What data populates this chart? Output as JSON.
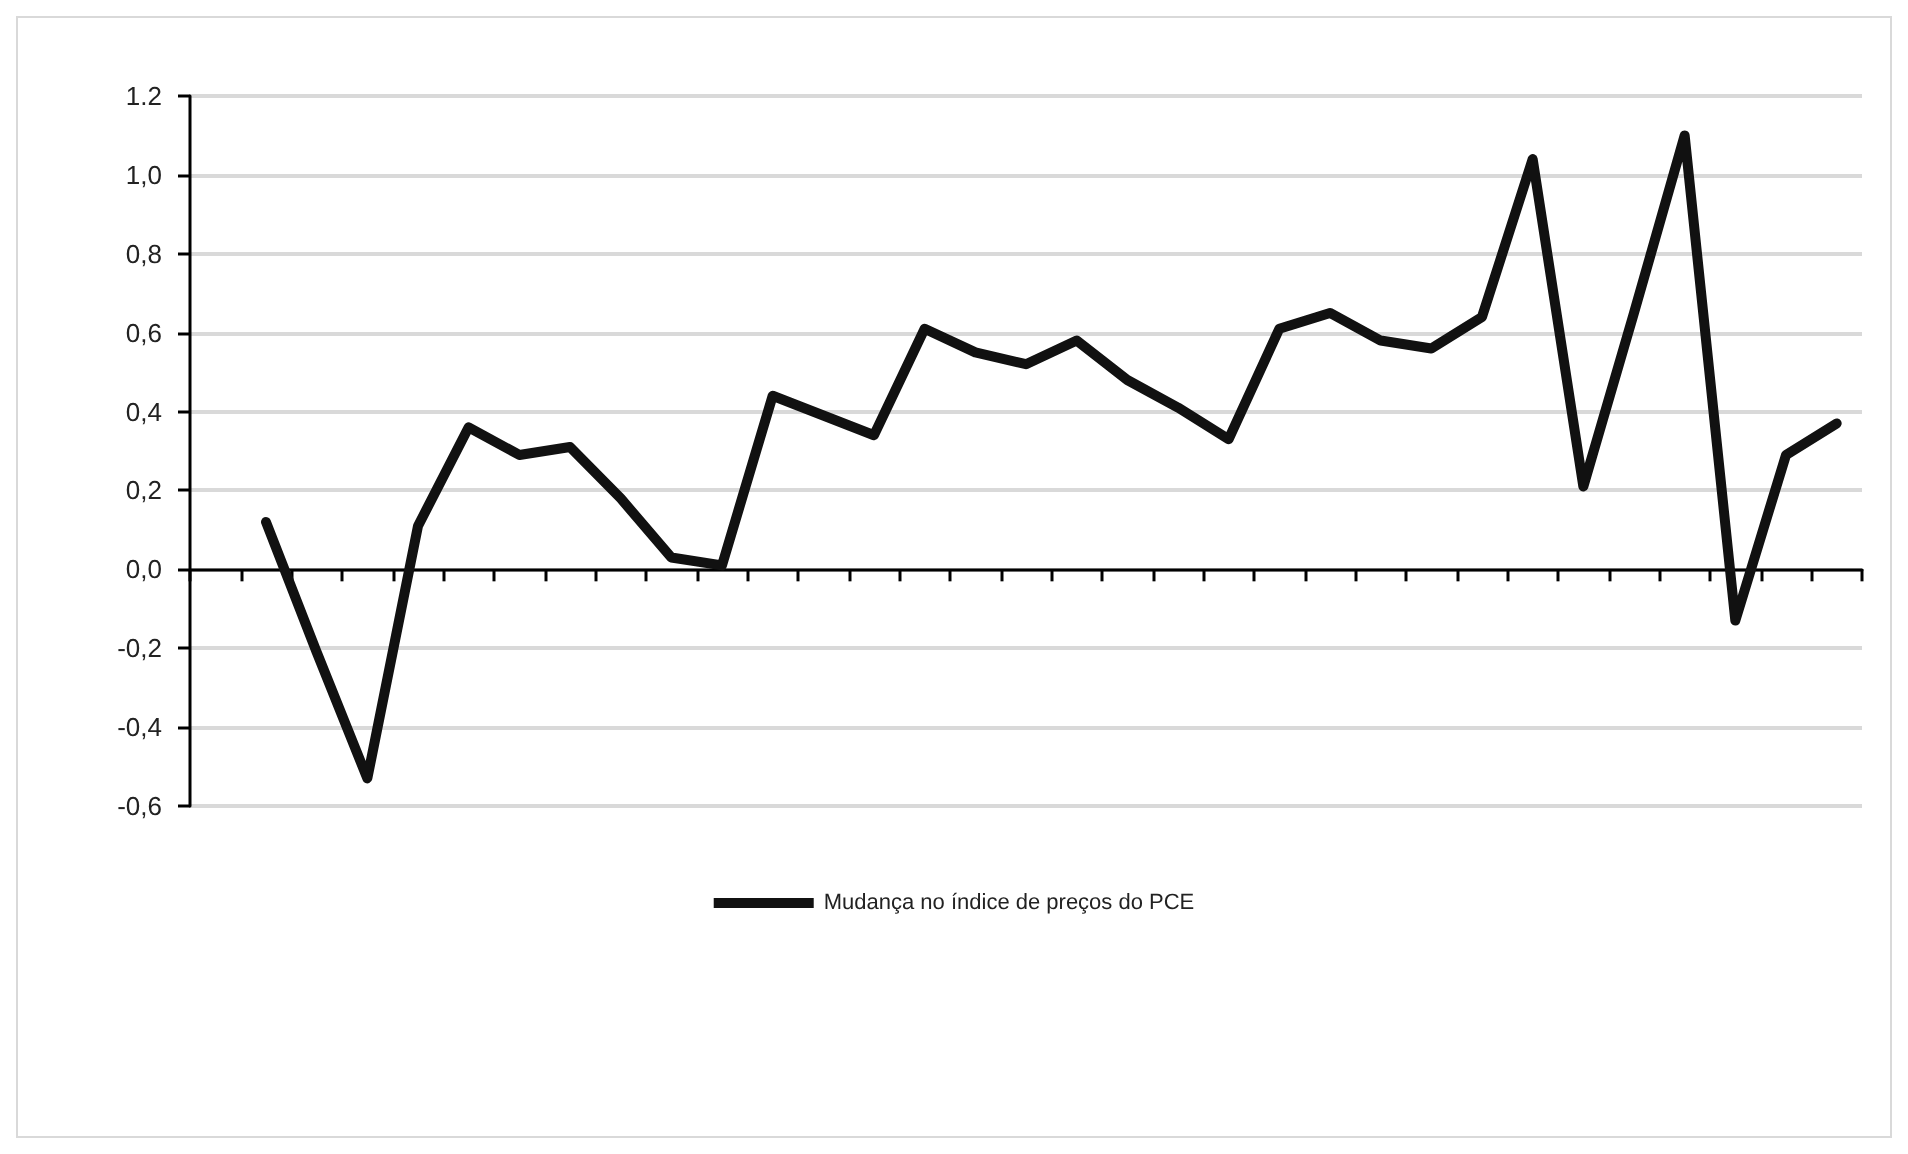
{
  "chart_data": {
    "type": "line",
    "categories": [
      null,
      null,
      null,
      null,
      null,
      null,
      null,
      null,
      null,
      null,
      null,
      null,
      null,
      null,
      null,
      null,
      null,
      null,
      null,
      null,
      null,
      null,
      null,
      null,
      null,
      null,
      null,
      null,
      null,
      null,
      null,
      null,
      null
    ],
    "series": [
      {
        "name": "Mudança no índice de preços do PCE",
        "color": "#111111",
        "values": [
          null,
          0.12,
          -0.21,
          -0.53,
          0.11,
          0.36,
          0.29,
          0.31,
          0.18,
          0.03,
          0.01,
          0.44,
          0.39,
          0.34,
          0.61,
          0.55,
          0.52,
          0.58,
          0.48,
          0.41,
          0.33,
          0.61,
          0.65,
          0.58,
          0.56,
          0.64,
          1.04,
          0.21,
          0.65,
          1.1,
          -0.13,
          0.29,
          0.37
        ]
      }
    ],
    "ylim": [
      -0.6,
      1.2
    ],
    "yticks": [
      {
        "value": -0.6,
        "label": "-0,6"
      },
      {
        "value": -0.4,
        "label": "-0,4"
      },
      {
        "value": -0.2,
        "label": "-0,2"
      },
      {
        "value": 0,
        "label": "0,0"
      },
      {
        "value": 0.2,
        "label": "0,2"
      },
      {
        "value": 0.4,
        "label": "0,4"
      },
      {
        "value": 0.6,
        "label": "0,6"
      },
      {
        "value": 0.8,
        "label": "0,8"
      },
      {
        "value": 1.0,
        "label": "1,0"
      },
      {
        "value": 1.2,
        "label": "1.2"
      }
    ],
    "grid": "y",
    "legend": "bottom",
    "marker": "none",
    "line_style": "solid"
  }
}
